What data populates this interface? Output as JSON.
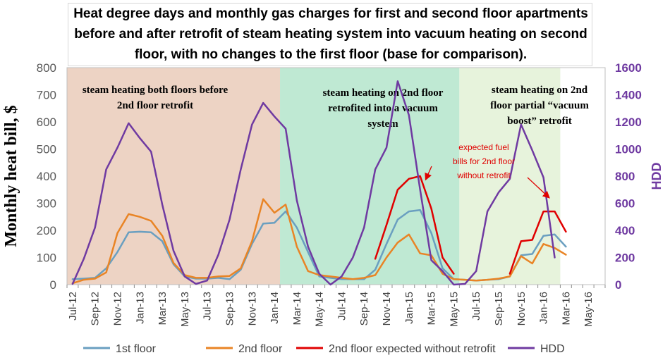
{
  "chart_data": {
    "type": "line",
    "title_lines": [
      "Heat degree days and monthly gas charges for first and second floor apartments",
      "before and after retrofit of steam heating system into vacuum heating on second",
      "floor, with no changes to the first floor (base for comparison)."
    ],
    "ylabel": "Monthly heat bill, $",
    "y2label": "HDD",
    "ylim": [
      0,
      800
    ],
    "y2lim": [
      0,
      1600
    ],
    "yticks": [
      "0",
      "100",
      "200",
      "300",
      "400",
      "500",
      "600",
      "700",
      "800"
    ],
    "y2ticks": [
      "0",
      "200",
      "400",
      "600",
      "800",
      "1000",
      "1200",
      "1400",
      "1600"
    ],
    "x_tick_labels": [
      "Jul-12",
      "Sep-12",
      "Nov-12",
      "Jan-13",
      "Mar-13",
      "May-13",
      "Jul-13",
      "Sep-13",
      "Nov-13",
      "Jan-14",
      "Mar-14",
      "May-14",
      "Jul-14",
      "Sep-14",
      "Nov-14",
      "Jan-15",
      "Mar-15",
      "May-15",
      "Jul-15",
      "Sep-15",
      "Nov-15",
      "Jan-16",
      "Mar-16",
      "May-16"
    ],
    "x_start": "Jul-12",
    "grid": false,
    "legend_position": "bottom",
    "regions": [
      {
        "label_lines": [
          "steam heating both floors  before",
          "2nd floor retrofit"
        ],
        "from": "Jul-12",
        "to": "Feb-14",
        "color": "#edd3c4"
      },
      {
        "label_lines": [
          "steam heating on 2nd floor",
          "retrofited into a vacuum",
          "system"
        ],
        "from": "Feb-14",
        "to": "Jun-15",
        "color": "#bfe9d3"
      },
      {
        "label_lines": [
          "steam heating on 2nd",
          "floor partial “vacuum",
          "boost” retrofit"
        ],
        "from": "Jun-15",
        "to": "Mar-16",
        "color": "#e7f3dc"
      }
    ],
    "annotation": {
      "lines": [
        "expected fuel",
        "bills for 2nd floor",
        "without retrofit"
      ],
      "color": "#e00000"
    },
    "series": [
      {
        "name": "1st floor",
        "color": "#6a9fc0",
        "axis": "left",
        "start": "Jul-12",
        "values": [
          20,
          22,
          25,
          60,
          120,
          193,
          195,
          193,
          160,
          75,
          30,
          22,
          22,
          25,
          20,
          55,
          150,
          225,
          228,
          270,
          210,
          120,
          30,
          25,
          20,
          20,
          20,
          55,
          150,
          240,
          270,
          275,
          190,
          60,
          20,
          18,
          15,
          18,
          20,
          30,
          108,
          113,
          180,
          185,
          140
        ]
      },
      {
        "name": "2nd floor",
        "color": "#e98425",
        "axis": "left",
        "start": "Jul-12",
        "values": [
          5,
          18,
          22,
          45,
          190,
          260,
          250,
          235,
          180,
          80,
          35,
          25,
          25,
          30,
          32,
          60,
          160,
          315,
          265,
          295,
          140,
          50,
          35,
          30,
          25,
          20,
          25,
          35,
          100,
          155,
          185,
          115,
          108,
          40,
          20,
          18,
          15,
          18,
          22,
          30,
          105,
          78,
          150,
          135,
          110
        ]
      },
      {
        "name": "2nd floor expected without retrofit",
        "color": "#e00000",
        "axis": "left",
        "segments": [
          {
            "start": "Oct-14",
            "values": [
              95,
              220,
              350,
              390,
              400,
              280,
              100,
              40
            ]
          },
          {
            "start": "Oct-15",
            "values": [
              40,
              160,
              165,
              270,
              270,
              195
            ]
          }
        ]
      },
      {
        "name": "HDD",
        "color": "#6f3aa1",
        "axis": "right",
        "start": "Jul-12",
        "values": [
          5,
          190,
          420,
          850,
          1010,
          1190,
          1080,
          980,
          590,
          250,
          60,
          5,
          30,
          220,
          480,
          850,
          1180,
          1340,
          1240,
          1150,
          620,
          280,
          80,
          0,
          60,
          200,
          420,
          850,
          1010,
          1500,
          1250,
          700,
          180,
          100,
          0,
          5,
          100,
          540,
          680,
          780,
          1180,
          990,
          790,
          200
        ]
      }
    ]
  }
}
